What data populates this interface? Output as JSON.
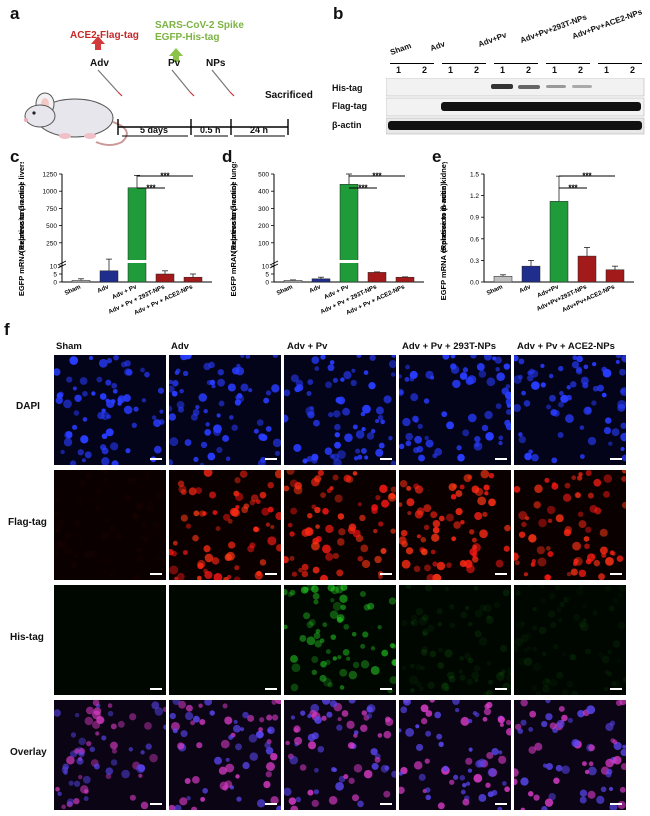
{
  "panel_a": {
    "label": "a",
    "ace2": "ACE2-Flag-tag",
    "spike1": "SARS-CoV-2 Spike",
    "spike2": "EGFP-His-tag",
    "adv": "Adv",
    "pv": "Pv",
    "nps": "NPs",
    "sacrificed": "Sacrificed",
    "t1": "5 days",
    "t2": "0.5 h",
    "t3": "24 h"
  },
  "panel_b": {
    "label": "b",
    "groups": [
      "Sham",
      "Adv",
      "Adv+Pv",
      "Adv+Pv+293T-NPs",
      "Adv+Pv+ACE2-NPs"
    ],
    "lanes": [
      "1",
      "2",
      "1",
      "2",
      "1",
      "2",
      "1",
      "2",
      "1",
      "2"
    ],
    "rows": [
      "His-tag",
      "Flag-tag",
      "β-actin"
    ]
  },
  "panel_c": {
    "label": "c"
  },
  "panel_d": {
    "label": "d"
  },
  "panel_e": {
    "label": "e"
  },
  "panel_f": {
    "label": "f",
    "columns": [
      "Sham",
      "Adv",
      "Adv + Pv",
      "Adv + Pv + 293T-NPs",
      "Adv + Pv + ACE2-NPs"
    ],
    "rows": [
      "DAPI",
      "Flag-tag",
      "His-tag",
      "Overlay"
    ]
  },
  "chart_data": [
    {
      "type": "bar",
      "ylabel": "EGFP mRNA expression in mice livers (Relative to β-actin)",
      "categories": [
        "Sham",
        "Adv",
        "Adv + Pv",
        "Adv + Pv + 293T-NPs",
        "Adv + Pv + ACE2-NPs"
      ],
      "values": [
        1,
        7,
        1050,
        5,
        3
      ],
      "errors": [
        1,
        6,
        180,
        2,
        2
      ],
      "yticks": [
        "0",
        "5",
        "10",
        "250",
        "500",
        "750",
        "1000",
        "1250"
      ],
      "ylim": [
        0,
        1250
      ],
      "axis_break": true,
      "significance": [
        "***",
        "***"
      ],
      "colors": [
        "#bfbfbf",
        "#1f2d8c",
        "#1f9b3a",
        "#a31a1a",
        "#a31a1a"
      ]
    },
    {
      "type": "bar",
      "ylabel": "EGFP mRAN expression in mice lungs (Relative to β-actin)",
      "categories": [
        "Sham",
        "Adv",
        "Adv + Pv",
        "Adv + Pv + 293T-NPs",
        "Adv + Pv + ACE2-NPs"
      ],
      "values": [
        1,
        2,
        440,
        6,
        3
      ],
      "errors": [
        0.3,
        1,
        60,
        0.3,
        0.2
      ],
      "yticks": [
        "0",
        "5",
        "10",
        "100",
        "200",
        "300",
        "400",
        "500"
      ],
      "ylim": [
        0,
        500
      ],
      "axis_break": true,
      "significance": [
        "***",
        "***"
      ],
      "colors": [
        "#bfbfbf",
        "#1f2d8c",
        "#1f9b3a",
        "#a31a1a",
        "#a31a1a"
      ]
    },
    {
      "type": "bar",
      "ylabel": "EGFP mRNA expression in mice kidneys (Relative to β-actin)",
      "categories": [
        "Sham",
        "Adv",
        "Adv+Pv",
        "Adv+Pv+293T-NPs",
        "Adv+Pv+ACE2-NPs"
      ],
      "values": [
        0.08,
        0.22,
        1.12,
        0.36,
        0.17
      ],
      "errors": [
        0.02,
        0.08,
        0.35,
        0.12,
        0.05
      ],
      "yticks": [
        "0.0",
        "0.3",
        "0.6",
        "0.9",
        "1.2",
        "1.5"
      ],
      "ylim": [
        0,
        1.5
      ],
      "axis_break": false,
      "significance": [
        "***",
        "***"
      ],
      "colors": [
        "#bfbfbf",
        "#1f2d8c",
        "#1f9b3a",
        "#a31a1a",
        "#a31a1a"
      ]
    }
  ]
}
